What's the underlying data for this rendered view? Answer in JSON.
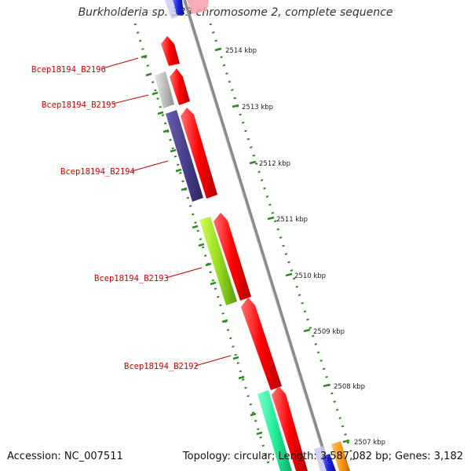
{
  "title": "Burkholderia sp. 383 chromosome 2, complete sequence",
  "accession": "Accession: NC_007511",
  "topology": "Topology: circular; Length: 3,587,082 bp; Genes: 3,182",
  "colors": {
    "backbone": "#8a8a8a",
    "tick": "#2e8b1e",
    "label": "#cc0000",
    "red": "#ff0000",
    "gray": "#bfbfbf",
    "indigo": "#4b3f8f",
    "lime": "#99dd22",
    "teal": "#22ee99",
    "blue": "#1a22dd",
    "orange": "#ff9a1a",
    "pink": "#f4a0a8",
    "lavender": "#c8c8f0"
  },
  "kbp_labels": [
    "2514 kbp",
    "2513 kbp",
    "2512 kbp",
    "2511 kbp",
    "2510 kbp",
    "2509 kbp",
    "2508 kbp",
    "2507 kbp"
  ],
  "gene_labels": [
    "Bcep18194_B2196",
    "Bcep18194_B2195",
    "Bcep18194_B2194",
    "Bcep18194_B2193",
    "Bcep18194_B2192"
  ]
}
